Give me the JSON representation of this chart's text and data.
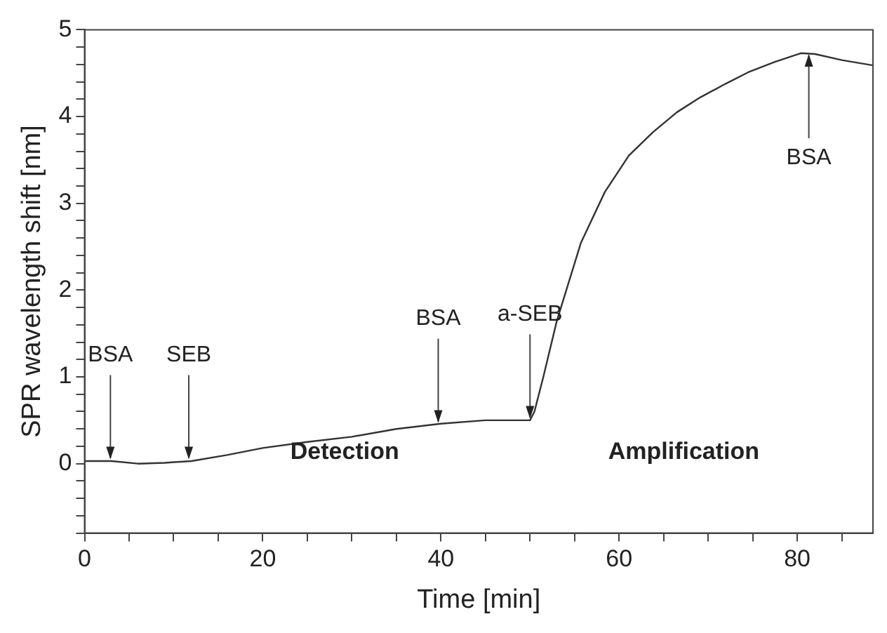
{
  "chart_data": {
    "type": "line",
    "xlabel": "Time [min]",
    "ylabel": "SPR wavelength shift [nm]",
    "xlim": [
      0,
      88.5
    ],
    "ylim": [
      -0.8,
      5
    ],
    "xticks": [
      0,
      {
        "value": 5,
        "label": null
      },
      {
        "value": 10,
        "label": null
      },
      {
        "value": 15,
        "label": null
      },
      20,
      {
        "value": 25,
        "label": null
      },
      {
        "value": 30,
        "label": null
      },
      {
        "value": 35,
        "label": null
      },
      40,
      {
        "value": 45,
        "label": null
      },
      {
        "value": 50,
        "label": null
      },
      {
        "value": 55,
        "label": null
      },
      60,
      {
        "value": 65,
        "label": null
      },
      {
        "value": 70,
        "label": null
      },
      {
        "value": 75,
        "label": null
      },
      80,
      {
        "value": 85,
        "label": null
      }
    ],
    "yticks": [
      {
        "value": -0.8,
        "label": null
      },
      {
        "value": -0.6,
        "label": null
      },
      {
        "value": -0.4,
        "label": null
      },
      {
        "value": -0.2,
        "label": null
      },
      0,
      {
        "value": 0.2,
        "label": null
      },
      {
        "value": 0.4,
        "label": null
      },
      {
        "value": 0.6,
        "label": null
      },
      {
        "value": 0.8,
        "label": null
      },
      1,
      {
        "value": 1.2,
        "label": null
      },
      {
        "value": 1.4,
        "label": null
      },
      {
        "value": 1.6,
        "label": null
      },
      {
        "value": 1.8,
        "label": null
      },
      2,
      {
        "value": 2.2,
        "label": null
      },
      {
        "value": 2.4,
        "label": null
      },
      {
        "value": 2.6,
        "label": null
      },
      {
        "value": 2.8,
        "label": null
      },
      3,
      {
        "value": 3.2,
        "label": null
      },
      {
        "value": 3.4,
        "label": null
      },
      {
        "value": 3.6,
        "label": null
      },
      {
        "value": 3.8,
        "label": null
      },
      4,
      {
        "value": 4.2,
        "label": null
      },
      {
        "value": 4.4,
        "label": null
      },
      {
        "value": 4.6,
        "label": null
      },
      {
        "value": 4.8,
        "label": null
      },
      5
    ],
    "grid": false,
    "legend": false,
    "marker": "none",
    "line_style": "solid",
    "series": [
      {
        "color": "#333333",
        "x": [
          0,
          3,
          6,
          9,
          12,
          16,
          20,
          25,
          30,
          35,
          40,
          45,
          50,
          50.5,
          51.5,
          53,
          55.7,
          58.4,
          61.1,
          63.8,
          66.5,
          69.1,
          72,
          74.5,
          77.5,
          80.4,
          82,
          85,
          88.5
        ],
        "values": [
          0.03,
          0.03,
          0.0,
          0.01,
          0.03,
          0.1,
          0.18,
          0.25,
          0.31,
          0.4,
          0.46,
          0.5,
          0.5,
          0.6,
          1.0,
          1.64,
          2.54,
          3.13,
          3.55,
          3.82,
          4.05,
          4.22,
          4.38,
          4.51,
          4.63,
          4.73,
          4.72,
          4.65,
          4.59
        ]
      }
    ],
    "annotations": [
      {
        "text": "BSA",
        "x": 2.9,
        "y": 0.05
      },
      {
        "text": "SEB",
        "x": 11.7,
        "y": 0.05
      },
      {
        "text": "BSA",
        "x": 39.7,
        "y": 0.47
      },
      {
        "text": "a-SEB",
        "x": 50,
        "y": 0.52
      },
      {
        "text": "BSA",
        "x": 81.3,
        "y": 4.72
      },
      "Detection",
      "Amplification"
    ]
  }
}
